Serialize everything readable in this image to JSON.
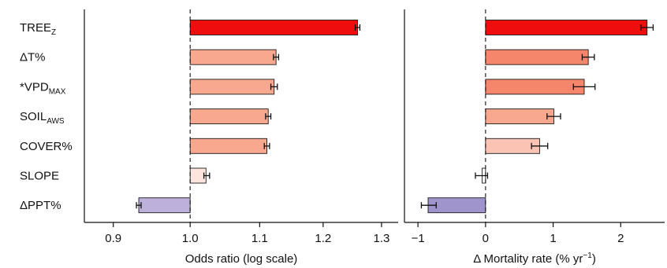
{
  "chart_data": [
    {
      "type": "bar",
      "orientation": "horizontal",
      "categories": [
        "TREE",
        "ΔT%",
        "*VPD",
        "SOIL",
        "COVER%",
        "SLOPE",
        "ΔPPT%"
      ],
      "category_subscripts": [
        "Z",
        "",
        "MAX",
        "AWS",
        "",
        "",
        ""
      ],
      "values": [
        1.258,
        1.125,
        1.122,
        1.113,
        1.111,
        1.022,
        0.932
      ],
      "ci_low": [
        1.254,
        1.121,
        1.117,
        1.109,
        1.107,
        1.019,
        0.929
      ],
      "ci_high": [
        1.262,
        1.129,
        1.127,
        1.117,
        1.115,
        1.027,
        0.935
      ],
      "colors": [
        "#f00d0d",
        "#f7a88f",
        "#f7a88f",
        "#f7a88f",
        "#f7a88f",
        "#fde5de",
        "#bdb0da"
      ],
      "base": 1.0,
      "xlabel": "Odds ratio (log scale)",
      "xlim": [
        0.865,
        1.33
      ],
      "xticks": [
        0.9,
        1.0,
        1.1,
        1.2,
        1.3
      ],
      "xtick_labels": [
        "0.9",
        "1.0",
        "1.1",
        "1.2",
        "1.3"
      ],
      "xscale": "log"
    },
    {
      "type": "bar",
      "orientation": "horizontal",
      "categories": [
        "TREE",
        "ΔT%",
        "*VPD",
        "SOIL",
        "COVER%",
        "SLOPE",
        "ΔPPT%"
      ],
      "values": [
        2.39,
        1.52,
        1.46,
        1.01,
        0.8,
        -0.05,
        -0.85
      ],
      "ci_low": [
        2.3,
        1.43,
        1.3,
        0.91,
        0.68,
        -0.15,
        -0.95
      ],
      "ci_high": [
        2.48,
        1.61,
        1.62,
        1.11,
        0.92,
        0.03,
        -0.73
      ],
      "colors": [
        "#f00d0d",
        "#f5866b",
        "#f5866b",
        "#f7a88f",
        "#fbc3b3",
        "#ffffff",
        "#a094cd"
      ],
      "base": 0,
      "xlabel": "Δ Mortality rate (% yr",
      "xlabel_superscript": "−1",
      "xlabel_suffix": ")",
      "xlim": [
        -1.2,
        2.65
      ],
      "xticks": [
        -1,
        0,
        1,
        2
      ],
      "xtick_labels": [
        "−1",
        "0",
        "1",
        "2"
      ]
    }
  ]
}
